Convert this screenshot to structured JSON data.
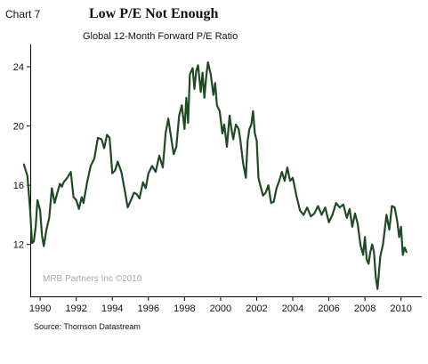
{
  "header": {
    "chart_number": "Chart 7",
    "headline": "Low P/E Not Enough"
  },
  "footer": {
    "source": "Source: Thomson Datastream"
  },
  "watermark": "MRB Partners Inc ©2010",
  "colors": {
    "line": "#1f4a24",
    "background": "#ffffff",
    "axis": "#000000",
    "watermark": "#a8a8a8"
  },
  "chart_data": {
    "type": "line",
    "title": "Global 12-Month Forward P/E Ratio",
    "xlabel": "",
    "ylabel": "",
    "xlim": [
      1989.5,
      2011.2
    ],
    "ylim": [
      8.5,
      25.5
    ],
    "x_ticks": [
      1990,
      1992,
      1994,
      1996,
      1998,
      2000,
      2002,
      2004,
      2006,
      2008,
      2010
    ],
    "x_tick_labels": [
      "1990",
      "1992",
      "1994",
      "1996",
      "1998",
      "2000",
      "2002",
      "2004",
      "2006",
      "2008",
      "2010"
    ],
    "y_ticks": [
      12,
      16,
      20,
      24
    ],
    "y_tick_labels": [
      "12",
      "16",
      "20",
      "24"
    ],
    "grid": false,
    "legend": "none",
    "series": [
      {
        "values_x": [
          1989.1,
          1989.3,
          1989.45,
          1989.55,
          1989.65,
          1989.75,
          1989.85,
          1990.0,
          1990.1,
          1990.2,
          1990.35,
          1990.5,
          1990.65,
          1990.8,
          1990.95,
          1991.1,
          1991.2,
          1991.3,
          1991.5,
          1991.7,
          1991.85,
          1992.0,
          1992.15,
          1992.3,
          1992.4,
          1992.6,
          1992.8,
          1993.0,
          1993.2,
          1993.4,
          1993.55,
          1993.7,
          1993.85,
          1994.0,
          1994.15,
          1994.3,
          1994.5,
          1994.7,
          1994.85,
          1995.0,
          1995.2,
          1995.35,
          1995.5,
          1995.7,
          1995.85,
          1996.0,
          1996.2,
          1996.4,
          1996.6,
          1996.8,
          1996.95,
          1997.1,
          1997.25,
          1997.4,
          1997.55,
          1997.7,
          1997.85,
          1998.0,
          1998.1,
          1998.2,
          1998.3,
          1998.45,
          1998.55,
          1998.65,
          1998.75,
          1998.9,
          1999.0,
          1999.1,
          1999.2,
          1999.3,
          1999.45,
          1999.6,
          1999.7,
          1999.8,
          1999.95,
          2000.1,
          2000.2,
          2000.35,
          2000.5,
          2000.6,
          2000.7,
          2000.85,
          2001.0,
          2001.1,
          2001.25,
          2001.4,
          2001.5,
          2001.6,
          2001.7,
          2001.8,
          2001.9,
          2002.0,
          2002.1,
          2002.2,
          2002.35,
          2002.5,
          2002.65,
          2002.8,
          2002.95,
          2003.1,
          2003.25,
          2003.4,
          2003.55,
          2003.7,
          2003.85,
          2004.0,
          2004.2,
          2004.4,
          2004.6,
          2004.8,
          2005.0,
          2005.2,
          2005.4,
          2005.6,
          2005.8,
          2006.0,
          2006.2,
          2006.4,
          2006.6,
          2006.8,
          2007.0,
          2007.15,
          2007.3,
          2007.45,
          2007.6,
          2007.75,
          2007.9,
          2008.0,
          2008.1,
          2008.2,
          2008.3,
          2008.4,
          2008.5,
          2008.6,
          2008.7,
          2008.85,
          2009.0,
          2009.2,
          2009.35,
          2009.5,
          2009.65,
          2009.8,
          2009.9,
          2010.0,
          2010.1,
          2010.2,
          2010.3
        ],
        "values": [
          17.4,
          16.6,
          14.2,
          12.1,
          12.2,
          13.2,
          15.0,
          14.3,
          12.6,
          11.9,
          13.0,
          13.8,
          15.8,
          14.8,
          15.5,
          16.1,
          15.9,
          16.2,
          16.5,
          16.9,
          15.2,
          15.0,
          14.4,
          15.2,
          14.8,
          16.2,
          17.3,
          17.8,
          19.2,
          19.1,
          18.5,
          19.4,
          19.2,
          16.8,
          17.0,
          17.6,
          16.9,
          15.6,
          14.5,
          14.9,
          15.5,
          15.4,
          15.1,
          16.2,
          15.8,
          16.8,
          17.3,
          16.9,
          18.0,
          17.2,
          19.5,
          20.5,
          19.3,
          18.1,
          18.6,
          20.7,
          21.4,
          19.8,
          21.9,
          20.2,
          23.5,
          23.9,
          22.5,
          23.7,
          24.1,
          22.3,
          23.6,
          21.9,
          23.3,
          24.3,
          23.5,
          22.1,
          22.9,
          21.4,
          21.0,
          19.5,
          20.1,
          18.6,
          20.7,
          19.8,
          19.1,
          20.1,
          19.8,
          19.0,
          17.5,
          16.5,
          19.0,
          19.8,
          20.1,
          21.0,
          19.5,
          19.0,
          16.5,
          16.0,
          15.3,
          15.5,
          16.0,
          14.8,
          14.9,
          15.8,
          16.3,
          16.9,
          16.3,
          17.2,
          16.3,
          16.5,
          15.3,
          14.3,
          14.0,
          14.5,
          13.9,
          14.1,
          14.6,
          14.0,
          14.5,
          13.5,
          14.0,
          14.8,
          14.5,
          14.7,
          13.8,
          14.4,
          13.2,
          14.1,
          13.4,
          12.0,
          11.3,
          12.5,
          11.0,
          10.7,
          11.5,
          12.0,
          11.5,
          9.8,
          9.0,
          11.2,
          12.0,
          14.0,
          13.0,
          14.6,
          14.5,
          13.5,
          12.5,
          13.2,
          11.3,
          11.8,
          11.5
        ]
      }
    ]
  }
}
